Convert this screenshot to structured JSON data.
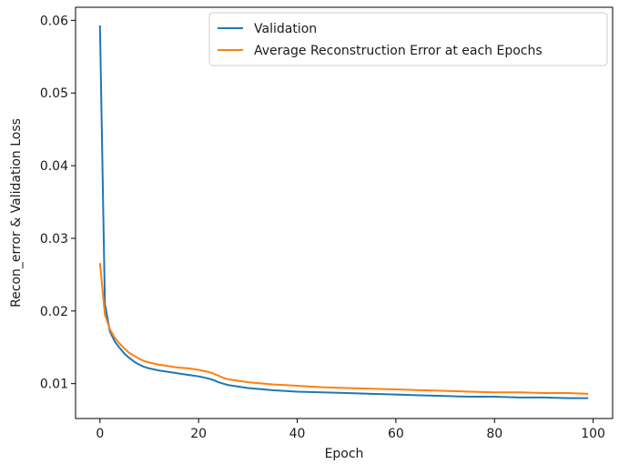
{
  "chart_data": {
    "type": "line",
    "title": "",
    "xlabel": "Epoch",
    "ylabel": "Recon_error & Validation Loss",
    "xlim": [
      -4.95,
      103.95
    ],
    "ylim": [
      0.0052,
      0.0618
    ],
    "xticks": [
      0,
      20,
      40,
      60,
      80,
      100
    ],
    "xtick_labels": [
      "0",
      "20",
      "40",
      "60",
      "80",
      "100"
    ],
    "yticks": [
      0.01,
      0.02,
      0.03,
      0.04,
      0.05,
      0.06
    ],
    "ytick_labels": [
      "0.01",
      "0.02",
      "0.03",
      "0.04",
      "0.05",
      "0.06"
    ],
    "grid": false,
    "legend_position": "top-right",
    "series": [
      {
        "name": "Validation",
        "color": "#1f77b4",
        "points": [
          [
            0,
            0.0593
          ],
          [
            1,
            0.021
          ],
          [
            2,
            0.0172
          ],
          [
            3,
            0.0158
          ],
          [
            4,
            0.0149
          ],
          [
            5,
            0.0141
          ],
          [
            6,
            0.0135
          ],
          [
            7,
            0.013
          ],
          [
            8,
            0.0126
          ],
          [
            9,
            0.0123
          ],
          [
            10,
            0.0121
          ],
          [
            12,
            0.0118
          ],
          [
            14,
            0.0116
          ],
          [
            16,
            0.0114
          ],
          [
            18,
            0.0112
          ],
          [
            20,
            0.011
          ],
          [
            22,
            0.0107
          ],
          [
            23,
            0.0105
          ],
          [
            24,
            0.0102
          ],
          [
            25,
            0.01
          ],
          [
            26,
            0.0098
          ],
          [
            28,
            0.0096
          ],
          [
            30,
            0.0094
          ],
          [
            35,
            0.0091
          ],
          [
            40,
            0.0089
          ],
          [
            45,
            0.0088
          ],
          [
            50,
            0.0087
          ],
          [
            55,
            0.0086
          ],
          [
            60,
            0.0085
          ],
          [
            65,
            0.0084
          ],
          [
            70,
            0.0083
          ],
          [
            75,
            0.0082
          ],
          [
            80,
            0.0082
          ],
          [
            85,
            0.0081
          ],
          [
            90,
            0.0081
          ],
          [
            95,
            0.008
          ],
          [
            99,
            0.008
          ]
        ]
      },
      {
        "name": "Average Reconstruction Error at each Epochs",
        "color": "#ff7f0e",
        "points": [
          [
            0,
            0.0266
          ],
          [
            1,
            0.0195
          ],
          [
            2,
            0.0175
          ],
          [
            3,
            0.0163
          ],
          [
            4,
            0.0155
          ],
          [
            5,
            0.0148
          ],
          [
            6,
            0.0142
          ],
          [
            7,
            0.0138
          ],
          [
            8,
            0.0134
          ],
          [
            9,
            0.0131
          ],
          [
            10,
            0.0129
          ],
          [
            12,
            0.0126
          ],
          [
            14,
            0.0124
          ],
          [
            16,
            0.0122
          ],
          [
            18,
            0.0121
          ],
          [
            20,
            0.0119
          ],
          [
            22,
            0.0116
          ],
          [
            23,
            0.0114
          ],
          [
            24,
            0.0111
          ],
          [
            25,
            0.0108
          ],
          [
            26,
            0.0106
          ],
          [
            28,
            0.0104
          ],
          [
            30,
            0.0102
          ],
          [
            35,
            0.0099
          ],
          [
            40,
            0.0097
          ],
          [
            45,
            0.0095
          ],
          [
            50,
            0.0094
          ],
          [
            55,
            0.0093
          ],
          [
            60,
            0.0092
          ],
          [
            65,
            0.0091
          ],
          [
            70,
            0.009
          ],
          [
            75,
            0.0089
          ],
          [
            80,
            0.0088
          ],
          [
            85,
            0.0088
          ],
          [
            90,
            0.0087
          ],
          [
            95,
            0.0087
          ],
          [
            99,
            0.0086
          ]
        ]
      }
    ]
  }
}
